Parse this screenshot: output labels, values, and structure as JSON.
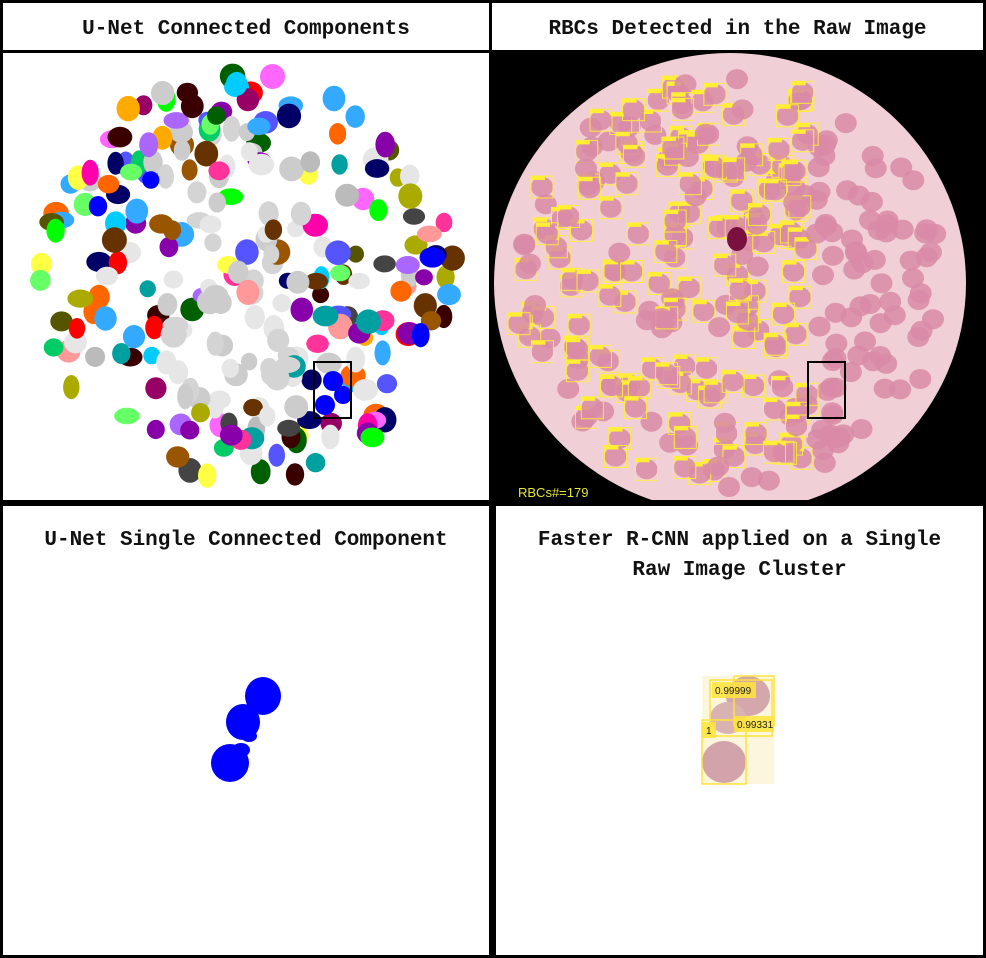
{
  "panels": {
    "top_left": {
      "title": "U-Net Connected Components"
    },
    "top_right": {
      "title": "RBCs Detected in the Raw Image",
      "count_label": "RBCs#=179"
    },
    "bottom_left": {
      "title": "U-Net Single Connected Component"
    },
    "bottom_right": {
      "title_line1": "Faster R-CNN applied on a Single",
      "title_line2": "Raw Image Cluster",
      "scores": [
        "0.99999",
        "0.99331",
        "1"
      ]
    }
  },
  "colors": {
    "border": "#000000",
    "background": "#ffffff",
    "smear": "#f1cfd6",
    "cell": "#d98aa6",
    "box": "#ffee33",
    "highlight_blue": "#0000ff",
    "count_text": "#e6e633"
  }
}
